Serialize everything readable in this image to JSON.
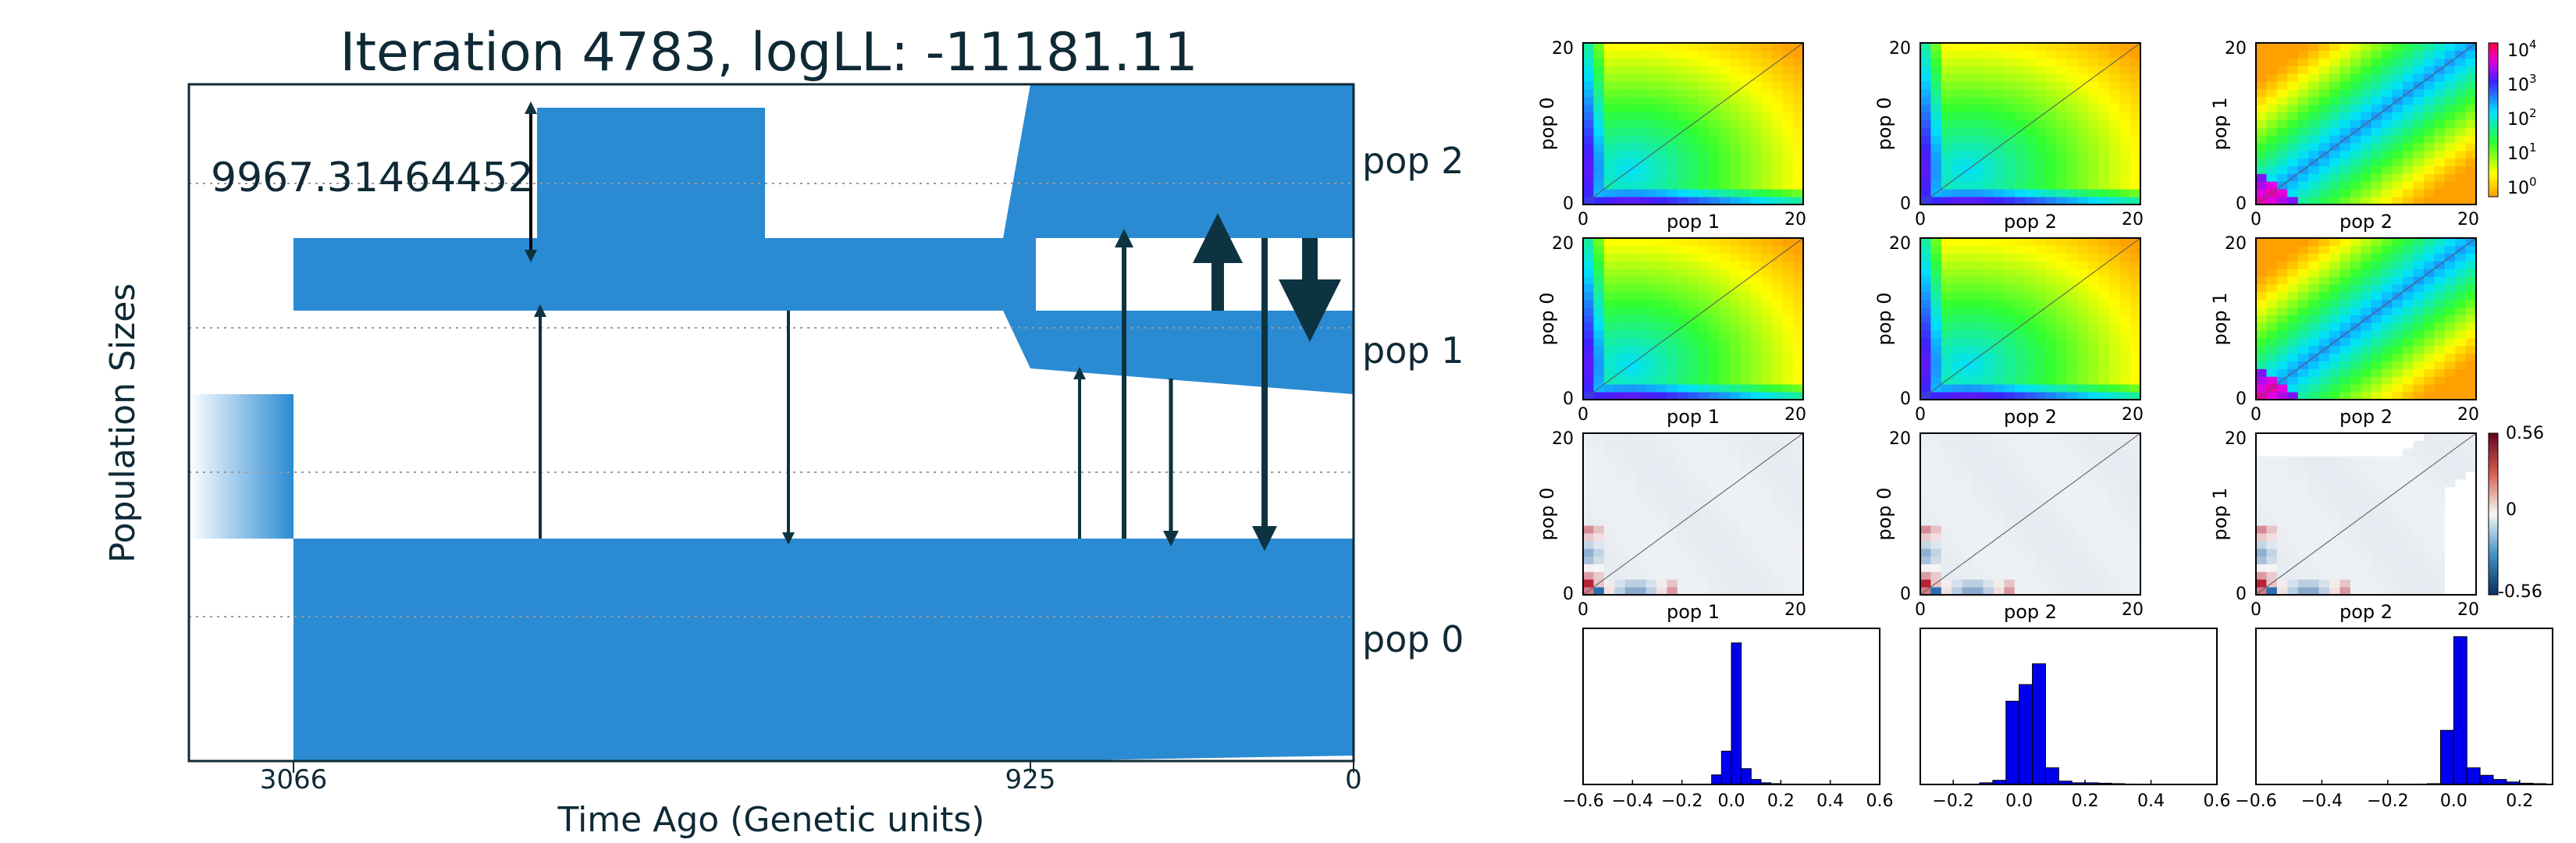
{
  "colors": {
    "population": "#2a8bd3",
    "migration_arrow": "#0d3340",
    "text": "#0f2a36",
    "hist_bar": "#0000ee",
    "diverging_positive": "#b2182b",
    "diverging_negative": "#2166ac"
  },
  "demography": {
    "title": "Iteration 4783, logLL:  -11181.11",
    "size_annotation": "9967.31464452",
    "xlabel": "Time Ago (Genetic units)",
    "ylabel": "Population Sizes",
    "ticks": [
      "3066",
      "925",
      "0"
    ],
    "populations": [
      "pop 2",
      "pop 1",
      "pop 0"
    ]
  },
  "chart_data": [
    {
      "type": "area",
      "title": "Iteration 4783, logLL:  -11181.11",
      "xlabel": "Time Ago (Genetic units)",
      "ylabel": "Population Sizes",
      "x_ticks": [
        3066,
        925,
        0
      ],
      "series": [
        {
          "name": "pop 0"
        },
        {
          "name": "pop 1"
        },
        {
          "name": "pop 2"
        }
      ],
      "annotation": "9967.31464452"
    },
    {
      "type": "heatmap",
      "panel": "observed-sfs",
      "cells": [
        {
          "xlabel": "pop 1",
          "ylabel": "pop 0"
        },
        {
          "xlabel": "pop 2",
          "ylabel": "pop 0"
        },
        {
          "xlabel": "pop 2",
          "ylabel": "pop 1"
        }
      ],
      "axis_ticks": [
        "0",
        "20"
      ],
      "colorbar": {
        "scale": "log",
        "base": "10",
        "ticks": [
          "4",
          "3",
          "2",
          "1",
          "0"
        ]
      }
    },
    {
      "type": "heatmap",
      "panel": "model-sfs",
      "cells": [
        {
          "xlabel": "pop 1",
          "ylabel": "pop 0"
        },
        {
          "xlabel": "pop 2",
          "ylabel": "pop 0"
        },
        {
          "xlabel": "pop 2",
          "ylabel": "pop 1"
        }
      ],
      "axis_ticks": [
        "0",
        "20"
      ]
    },
    {
      "type": "heatmap",
      "panel": "residuals",
      "cells": [
        {
          "xlabel": "pop 1",
          "ylabel": "pop 0"
        },
        {
          "xlabel": "pop 2",
          "ylabel": "pop 0"
        },
        {
          "xlabel": "pop 2",
          "ylabel": "pop 1"
        }
      ],
      "axis_ticks": [
        "0",
        "20"
      ],
      "colorbar": {
        "ticks": [
          "0.56",
          "0",
          "-0.56"
        ],
        "range": [
          -0.56,
          0.56
        ]
      }
    },
    {
      "type": "bar",
      "panel": "residual-histograms",
      "hists": [
        {
          "tick_labels": [
            "−0.6",
            "−0.4",
            "−0.2",
            "0.0",
            "0.2",
            "0.4",
            "0.6"
          ],
          "xlim": [
            -0.6,
            0.6
          ],
          "bins": [
            -0.12,
            -0.08,
            -0.04,
            0.0,
            0.04,
            0.08,
            0.12,
            0.16,
            0.2,
            0.24
          ],
          "values": [
            1,
            23,
            80,
            340,
            38,
            12,
            4,
            2,
            1,
            1
          ]
        },
        {
          "tick_labels": [
            "−0.2",
            "0.0",
            "0.2",
            "0.4",
            "0.6"
          ],
          "xlim": [
            -0.3,
            0.6
          ],
          "bins": [
            -0.12,
            -0.08,
            -0.04,
            0.0,
            0.04,
            0.08,
            0.12,
            0.16,
            0.2,
            0.24,
            0.28,
            0.32
          ],
          "values": [
            4,
            10,
            200,
            240,
            290,
            40,
            8,
            4,
            4,
            3,
            2,
            1
          ]
        },
        {
          "tick_labels": [
            "−0.6",
            "−0.4",
            "−0.2",
            "0.0",
            "0.2"
          ],
          "xlim": [
            -0.6,
            0.3
          ],
          "bins": [
            -0.12,
            -0.08,
            -0.04,
            0.0,
            0.04,
            0.08,
            0.12,
            0.16,
            0.2,
            0.24
          ],
          "values": [
            1,
            2,
            130,
            355,
            40,
            22,
            12,
            6,
            3,
            2
          ]
        }
      ]
    }
  ]
}
